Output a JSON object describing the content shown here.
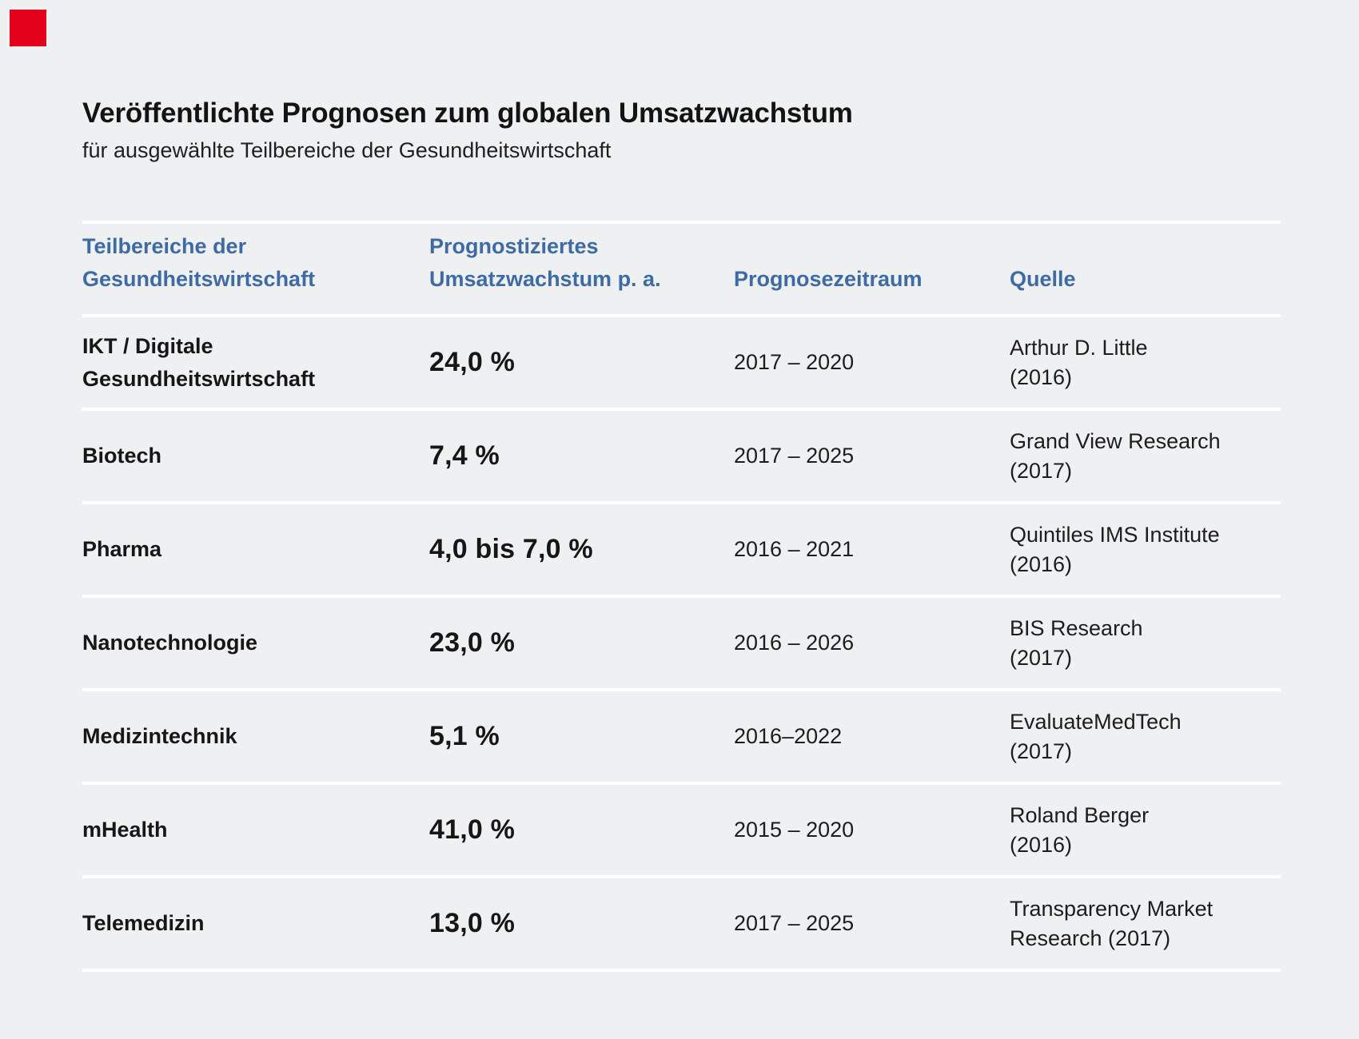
{
  "page": {
    "background_color": "#eef0f2",
    "separator_color": "#ffffff",
    "accent_blue": "#3e6ba6",
    "brand_mark_color": "#e2001a"
  },
  "header": {
    "title": "Veröffentlichte Prognosen zum globalen Umsatzwachstum",
    "subtitle": "für ausgewählte Teilbereiche der Gesundheitswirtschaft"
  },
  "table": {
    "columns": [
      {
        "label": "Teilbereiche der\nGesundheitswirtschaft"
      },
      {
        "label": "Prognostiziertes\nUmsatzwachstum p. a."
      },
      {
        "label": "Prognosezeitraum"
      },
      {
        "label": "Quelle"
      }
    ],
    "rows": [
      {
        "segment": "IKT / Digitale\nGesundheitswirtschaft",
        "growth": "24,0 %",
        "period": "2017 – 2020",
        "source": "Arthur D. Little\n(2016)"
      },
      {
        "segment": "Biotech",
        "growth": "7,4 %",
        "period": "2017 – 2025",
        "source": "Grand View Research\n(2017)"
      },
      {
        "segment": "Pharma",
        "growth": "4,0 bis 7,0 %",
        "period": "2016 – 2021",
        "source": "Quintiles IMS Institute\n(2016)"
      },
      {
        "segment": "Nanotechnologie",
        "growth": "23,0 %",
        "period": "2016 – 2026",
        "source": "BIS Research\n(2017)"
      },
      {
        "segment": "Medizintechnik",
        "growth": "5,1 %",
        "period": "2016–2022",
        "source": "EvaluateMedTech\n(2017)"
      },
      {
        "segment": "mHealth",
        "growth": "41,0 %",
        "period": "2015 – 2020",
        "source": "Roland Berger\n(2016)"
      },
      {
        "segment": "Telemedizin",
        "growth": "13,0 %",
        "period": "2017 – 2025",
        "source": "Transparency Market\nResearch (2017)"
      }
    ]
  },
  "chart_data": {
    "type": "table",
    "title": "Veröffentlichte Prognosen zum globalen Umsatzwachstum",
    "subtitle": "für ausgewählte Teilbereiche der Gesundheitswirtschaft",
    "columns": [
      "Teilbereiche der Gesundheitswirtschaft",
      "Prognostiziertes Umsatzwachstum p. a.",
      "Prognosezeitraum",
      "Quelle"
    ],
    "rows": [
      [
        "IKT / Digitale Gesundheitswirtschaft",
        "24,0 %",
        "2017 – 2020",
        "Arthur D. Little (2016)"
      ],
      [
        "Biotech",
        "7,4 %",
        "2017 – 2025",
        "Grand View Research (2017)"
      ],
      [
        "Pharma",
        "4,0 bis 7,0 %",
        "2016 – 2021",
        "Quintiles IMS Institute (2016)"
      ],
      [
        "Nanotechnologie",
        "23,0 %",
        "2016 – 2026",
        "BIS Research (2017)"
      ],
      [
        "Medizintechnik",
        "5,1 %",
        "2016–2022",
        "EvaluateMedTech (2017)"
      ],
      [
        "mHealth",
        "41,0 %",
        "2015 – 2020",
        "Roland Berger (2016)"
      ],
      [
        "Telemedizin",
        "13,0 %",
        "2017 – 2025",
        "Transparency Market Research (2017)"
      ]
    ],
    "growth_values_percent": [
      24.0,
      7.4,
      [
        4.0,
        7.0
      ],
      23.0,
      5.1,
      41.0,
      13.0
    ]
  }
}
